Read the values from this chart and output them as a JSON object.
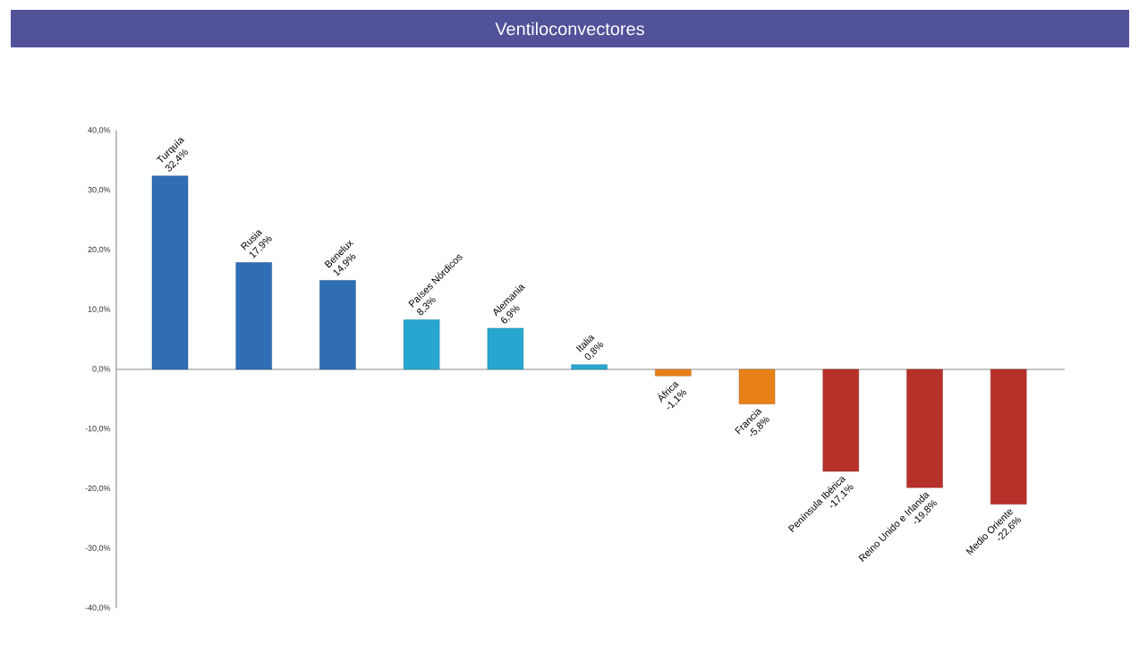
{
  "chart_data": {
    "type": "bar",
    "title": "Ventiloconvectores",
    "categories": [
      "Turquía",
      "Rusia",
      "Benelux",
      "Países Nórdicos",
      "Alemania",
      "Italia",
      "África",
      "Francia",
      "Península Ibérica",
      "Reino Unido e Irlanda",
      "Medio Oriente"
    ],
    "values": [
      32.4,
      17.9,
      14.9,
      8.3,
      6.9,
      0.8,
      -1.1,
      -5.8,
      -17.1,
      -19.8,
      -22.6
    ],
    "value_labels": [
      "32,4%",
      "17,9%",
      "14,9%",
      "8,3%",
      "6,9%",
      "0,8%",
      "-1,1%",
      "-5,8%",
      "-17,1%",
      "-19,8%",
      "-22,6%"
    ],
    "colors": [
      "#2f6db5",
      "#2f6db5",
      "#2f6db5",
      "#27a7cf",
      "#27a7cf",
      "#27a7cf",
      "#e8801a",
      "#e8801a",
      "#b8302a",
      "#b8302a",
      "#b8302a"
    ],
    "ylim": [
      -40,
      40
    ],
    "yticks": [
      {
        "value": -40,
        "label": "-40,0%"
      },
      {
        "value": -30,
        "label": "-30,0%"
      },
      {
        "value": -20,
        "label": "-20,0%"
      },
      {
        "value": -10,
        "label": "-10,0%"
      },
      {
        "value": 0,
        "label": "0,0%"
      },
      {
        "value": 10,
        "label": "10,0%"
      },
      {
        "value": 20,
        "label": "20,0%"
      },
      {
        "value": 30,
        "label": "30,0%"
      },
      {
        "value": 40,
        "label": "40,0%"
      }
    ],
    "ref_lines": [
      {
        "axis": "y",
        "value": 0,
        "color": "#8c8c8c"
      }
    ]
  }
}
